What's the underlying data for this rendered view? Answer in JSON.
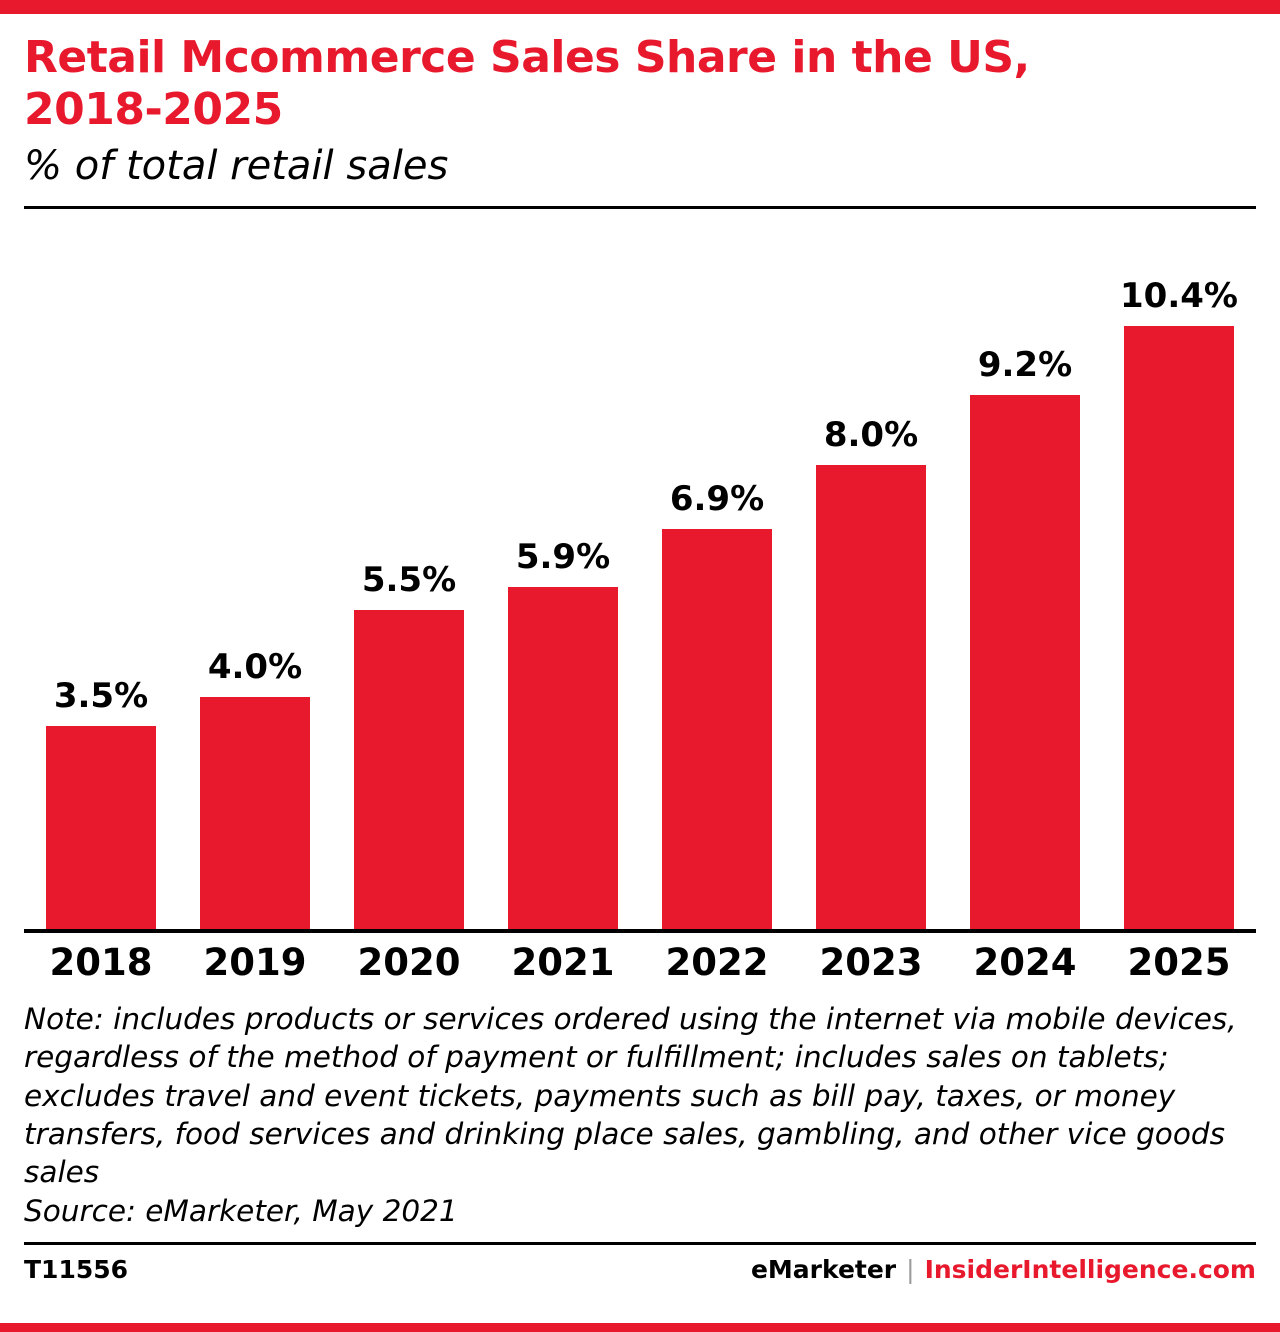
{
  "colors": {
    "accent": "#e8192d",
    "bar": "#e8192d",
    "text": "#000000",
    "separator": "#9b9b9b"
  },
  "header": {
    "title_line1": "Retail Mcommerce Sales Share in the US,",
    "title_line2": "2018-2025",
    "subtitle": "% of total retail sales"
  },
  "chart_data": {
    "type": "bar",
    "title": "Retail Mcommerce Sales Share in the US, 2018-2025",
    "subtitle": "% of total retail sales",
    "categories": [
      "2018",
      "2019",
      "2020",
      "2021",
      "2022",
      "2023",
      "2024",
      "2025"
    ],
    "values": [
      3.5,
      4.0,
      5.5,
      5.9,
      6.9,
      8.0,
      9.2,
      10.4
    ],
    "value_labels": [
      "3.5%",
      "4.0%",
      "5.5%",
      "5.9%",
      "6.9%",
      "8.0%",
      "9.2%",
      "10.4%"
    ],
    "xlabel": "",
    "ylabel": "% of total retail sales",
    "ylim": [
      0,
      11
    ],
    "grid": false,
    "legend": "none",
    "bar_color": "#e8192d"
  },
  "note": {
    "text": "Note: includes products or services ordered using the internet via mobile devices, regardless of the method of payment or fulfillment; includes sales on tablets; excludes travel and event tickets, payments such as bill pay, taxes, or money transfers, food services and drinking place sales, gambling, and other vice goods sales",
    "source": "Source: eMarketer, May 2021"
  },
  "footer": {
    "chart_id": "T11556",
    "brand": "eMarketer",
    "separator": "|",
    "site": "InsiderIntelligence.com"
  }
}
